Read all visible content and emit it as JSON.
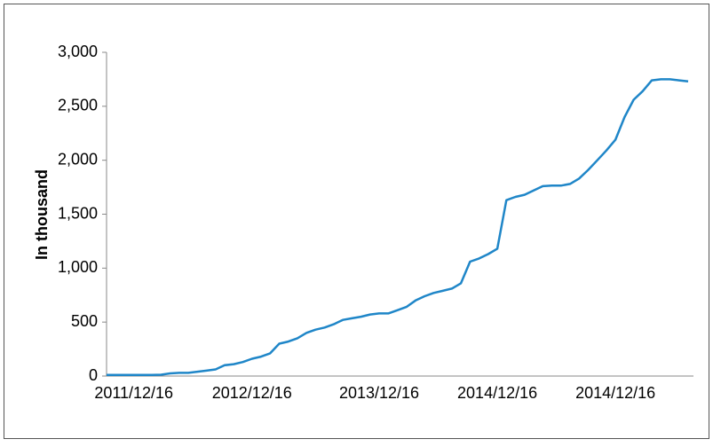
{
  "chart_data": {
    "type": "line",
    "y_label": "In thousand",
    "categories": [
      null,
      null,
      null,
      "2011/12/16",
      null,
      null,
      null,
      null,
      null,
      null,
      null,
      null,
      null,
      null,
      null,
      null,
      "2012/12/16",
      null,
      null,
      null,
      null,
      null,
      null,
      null,
      null,
      null,
      null,
      null,
      null,
      null,
      "2013/12/16",
      null,
      null,
      null,
      null,
      null,
      null,
      null,
      null,
      null,
      null,
      null,
      null,
      "2014/12/16",
      null,
      null,
      null,
      null,
      null,
      null,
      null,
      null,
      null,
      null,
      null,
      null,
      "2014/12/16",
      null,
      null,
      null,
      null,
      null,
      null,
      null,
      null
    ],
    "series": [
      {
        "color": "#1f86c8",
        "values": [
          10,
          10,
          10,
          10,
          10,
          10,
          12,
          25,
          30,
          30,
          40,
          50,
          62,
          100,
          110,
          130,
          160,
          180,
          210,
          300,
          320,
          350,
          400,
          430,
          450,
          480,
          520,
          535,
          550,
          570,
          580,
          580,
          610,
          640,
          700,
          740,
          770,
          790,
          810,
          860,
          1060,
          1090,
          1130,
          1180,
          1630,
          1660,
          1680,
          1720,
          1760,
          1765,
          1765,
          1780,
          1830,
          1910,
          2000,
          2090,
          2190,
          2400,
          2560,
          2640,
          2740,
          2750,
          2750,
          2740,
          2730
        ]
      }
    ],
    "ylim": [
      0,
      3000
    ],
    "yticks": [
      0,
      {
        "value": 500,
        "label": "500"
      },
      {
        "value": 1000,
        "label": "1,000"
      },
      {
        "value": 1500,
        "label": "1,500"
      },
      {
        "value": 2000,
        "label": "2,000"
      },
      {
        "value": 2500,
        "label": "2,500"
      },
      {
        "value": 3000,
        "label": "3,000"
      }
    ]
  }
}
